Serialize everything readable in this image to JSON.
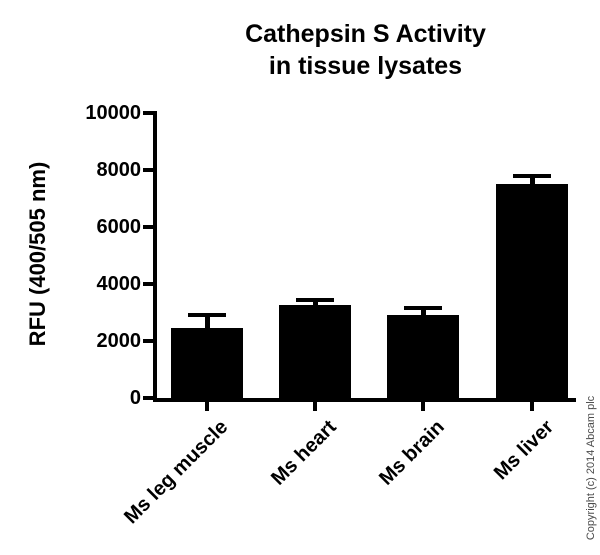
{
  "chart_data": {
    "type": "bar",
    "title": "Cathepsin S Activity in tissue lysates",
    "title_lines": [
      "Cathepsin S Activity",
      "in tissue lysates"
    ],
    "ylabel": "RFU (400/505 nm)",
    "xlabel": "",
    "categories": [
      "Ms leg muscle",
      "Ms heart",
      "Ms brain",
      "Ms liver"
    ],
    "values": [
      2450,
      3250,
      2900,
      7500
    ],
    "errors_plus": [
      450,
      200,
      250,
      300
    ],
    "ylim": [
      0,
      10000
    ],
    "yticks": [
      0,
      2000,
      4000,
      6000,
      8000,
      10000
    ],
    "grid": false,
    "legend": "none",
    "bar_color": "#000000",
    "axis_color": "#000000",
    "error_bar_style": "upper-cap-only"
  },
  "copyright": "Copyright (c) 2014 Abcam plc",
  "colors": {
    "background": "#ffffff",
    "text": "#000000",
    "copyright_text": "#4c4c4c"
  }
}
